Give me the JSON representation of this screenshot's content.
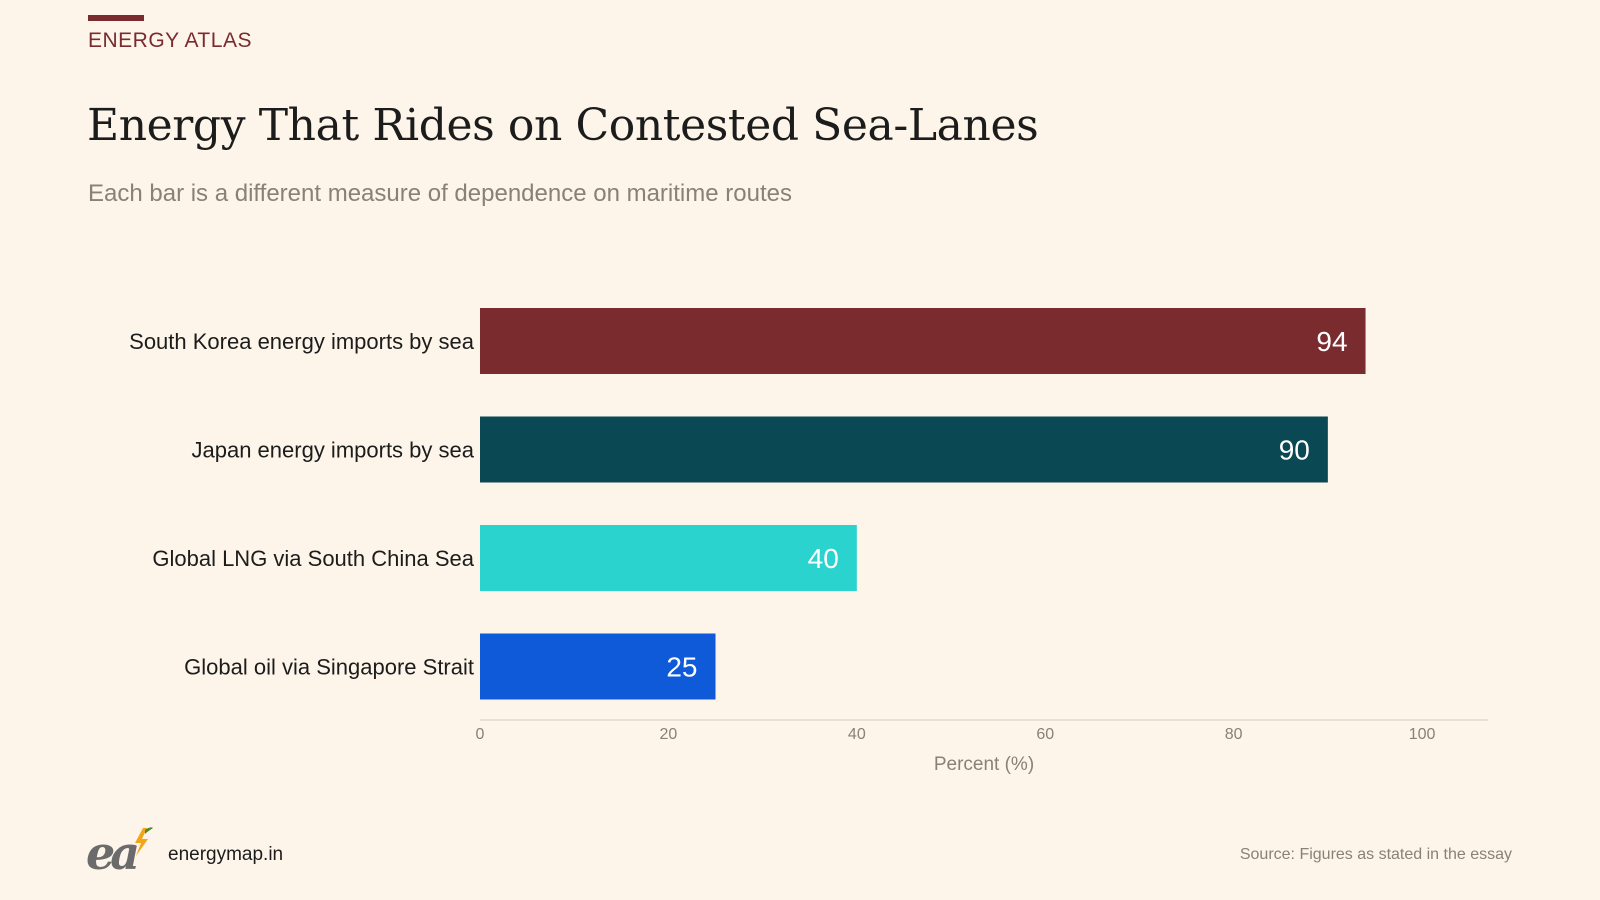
{
  "header": {
    "kicker": "ENERGY ATLAS",
    "accent_color": "#7a2b2e"
  },
  "chart_data": {
    "type": "bar",
    "orientation": "horizontal",
    "title": "Energy That Rides on Contested Sea-Lanes",
    "subtitle": "Each bar is a different measure of dependence on maritime routes",
    "categories": [
      "South Korea energy imports by sea",
      "Japan energy imports by sea",
      "Global LNG via South China Sea",
      "Global oil via Singapore Strait"
    ],
    "values": [
      94,
      90,
      40,
      25
    ],
    "data_labels": [
      "94",
      "90",
      "40",
      "25"
    ],
    "colors": [
      "#7a2b2e",
      "#0a4854",
      "#2bd3cf",
      "#0f5ad9"
    ],
    "xlabel": "Percent (%)",
    "xlim": [
      0,
      107
    ],
    "x_ticks": [
      0,
      20,
      40,
      60,
      80,
      100
    ],
    "x_tick_labels": [
      "0",
      "20",
      "40",
      "60",
      "80",
      "100"
    ],
    "grid": false,
    "legend": "none"
  },
  "footer": {
    "logo_icon": "energy-atlas-logo",
    "site": "energymap.in",
    "source": "Source: Figures as stated in the essay"
  }
}
